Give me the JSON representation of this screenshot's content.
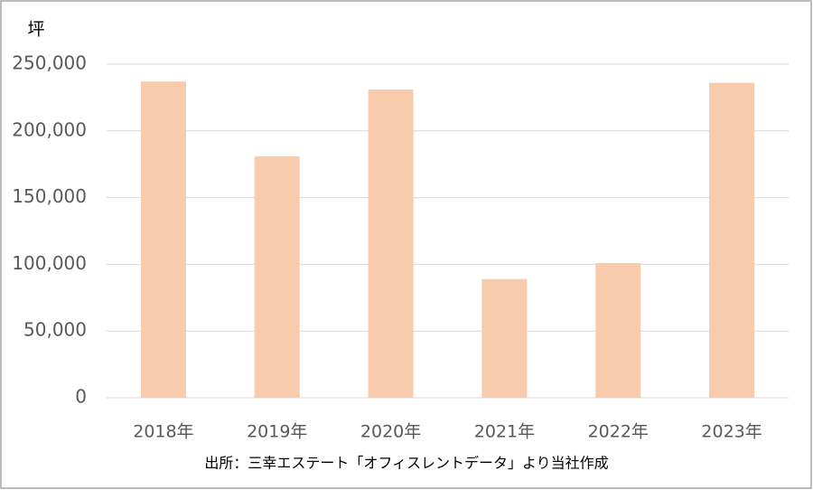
{
  "chart_data": {
    "type": "bar",
    "y_label": "坪",
    "categories": [
      "2018年",
      "2019年",
      "2020年",
      "2021年",
      "2022年",
      "2023年"
    ],
    "values": [
      237000,
      181000,
      231000,
      89000,
      101000,
      236000
    ],
    "color": "#f8cbad",
    "ylim": [
      0,
      250000
    ],
    "yticks": [
      0,
      {
        "value": 50000,
        "label": "50,000"
      },
      {
        "value": 100000,
        "label": "100,000"
      },
      {
        "value": 150000,
        "label": "150,000"
      },
      {
        "value": 200000,
        "label": "200,000"
      },
      {
        "value": 250000,
        "label": "250,000"
      }
    ],
    "grid": true,
    "source": "出所：三幸エステート「オフィスレントデータ」より当社作成"
  }
}
